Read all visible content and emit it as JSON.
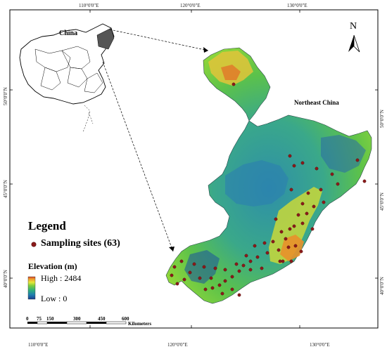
{
  "grid_labels": {
    "top": [
      "110°0'0\"E",
      "120°0'0\"E",
      "130°0'0\"E"
    ],
    "bottom": [
      "110°0'0\"E",
      "120°0'0\"E",
      "130°0'0\"E"
    ],
    "left": [
      "50°0'0\"N",
      "45°0'0\"N",
      "40°0'0\"N"
    ],
    "right": [
      "50°0'0\"N",
      "45°0'0\"N",
      "40°0'0\"N"
    ]
  },
  "inset": {
    "label": "China"
  },
  "region": {
    "label": "Northeast China"
  },
  "north_arrow": {
    "label": "N"
  },
  "legend": {
    "title": "Legend",
    "sites_label": "Sampling sites (63)",
    "elevation_title": "Elevation (m)",
    "high": "High : 2484",
    "low": "Low : 0"
  },
  "scale_bar": {
    "ticks": [
      "0",
      "75",
      "150",
      "300",
      "450",
      "600"
    ],
    "unit": "Kilometers"
  },
  "colors": {
    "site": "#8b1a1a",
    "ramp": [
      "#1a3d8f",
      "#1f7fb0",
      "#2fb07a",
      "#7ccd3c",
      "#e6e83a",
      "#f09a2a",
      "#d0402a"
    ]
  }
}
